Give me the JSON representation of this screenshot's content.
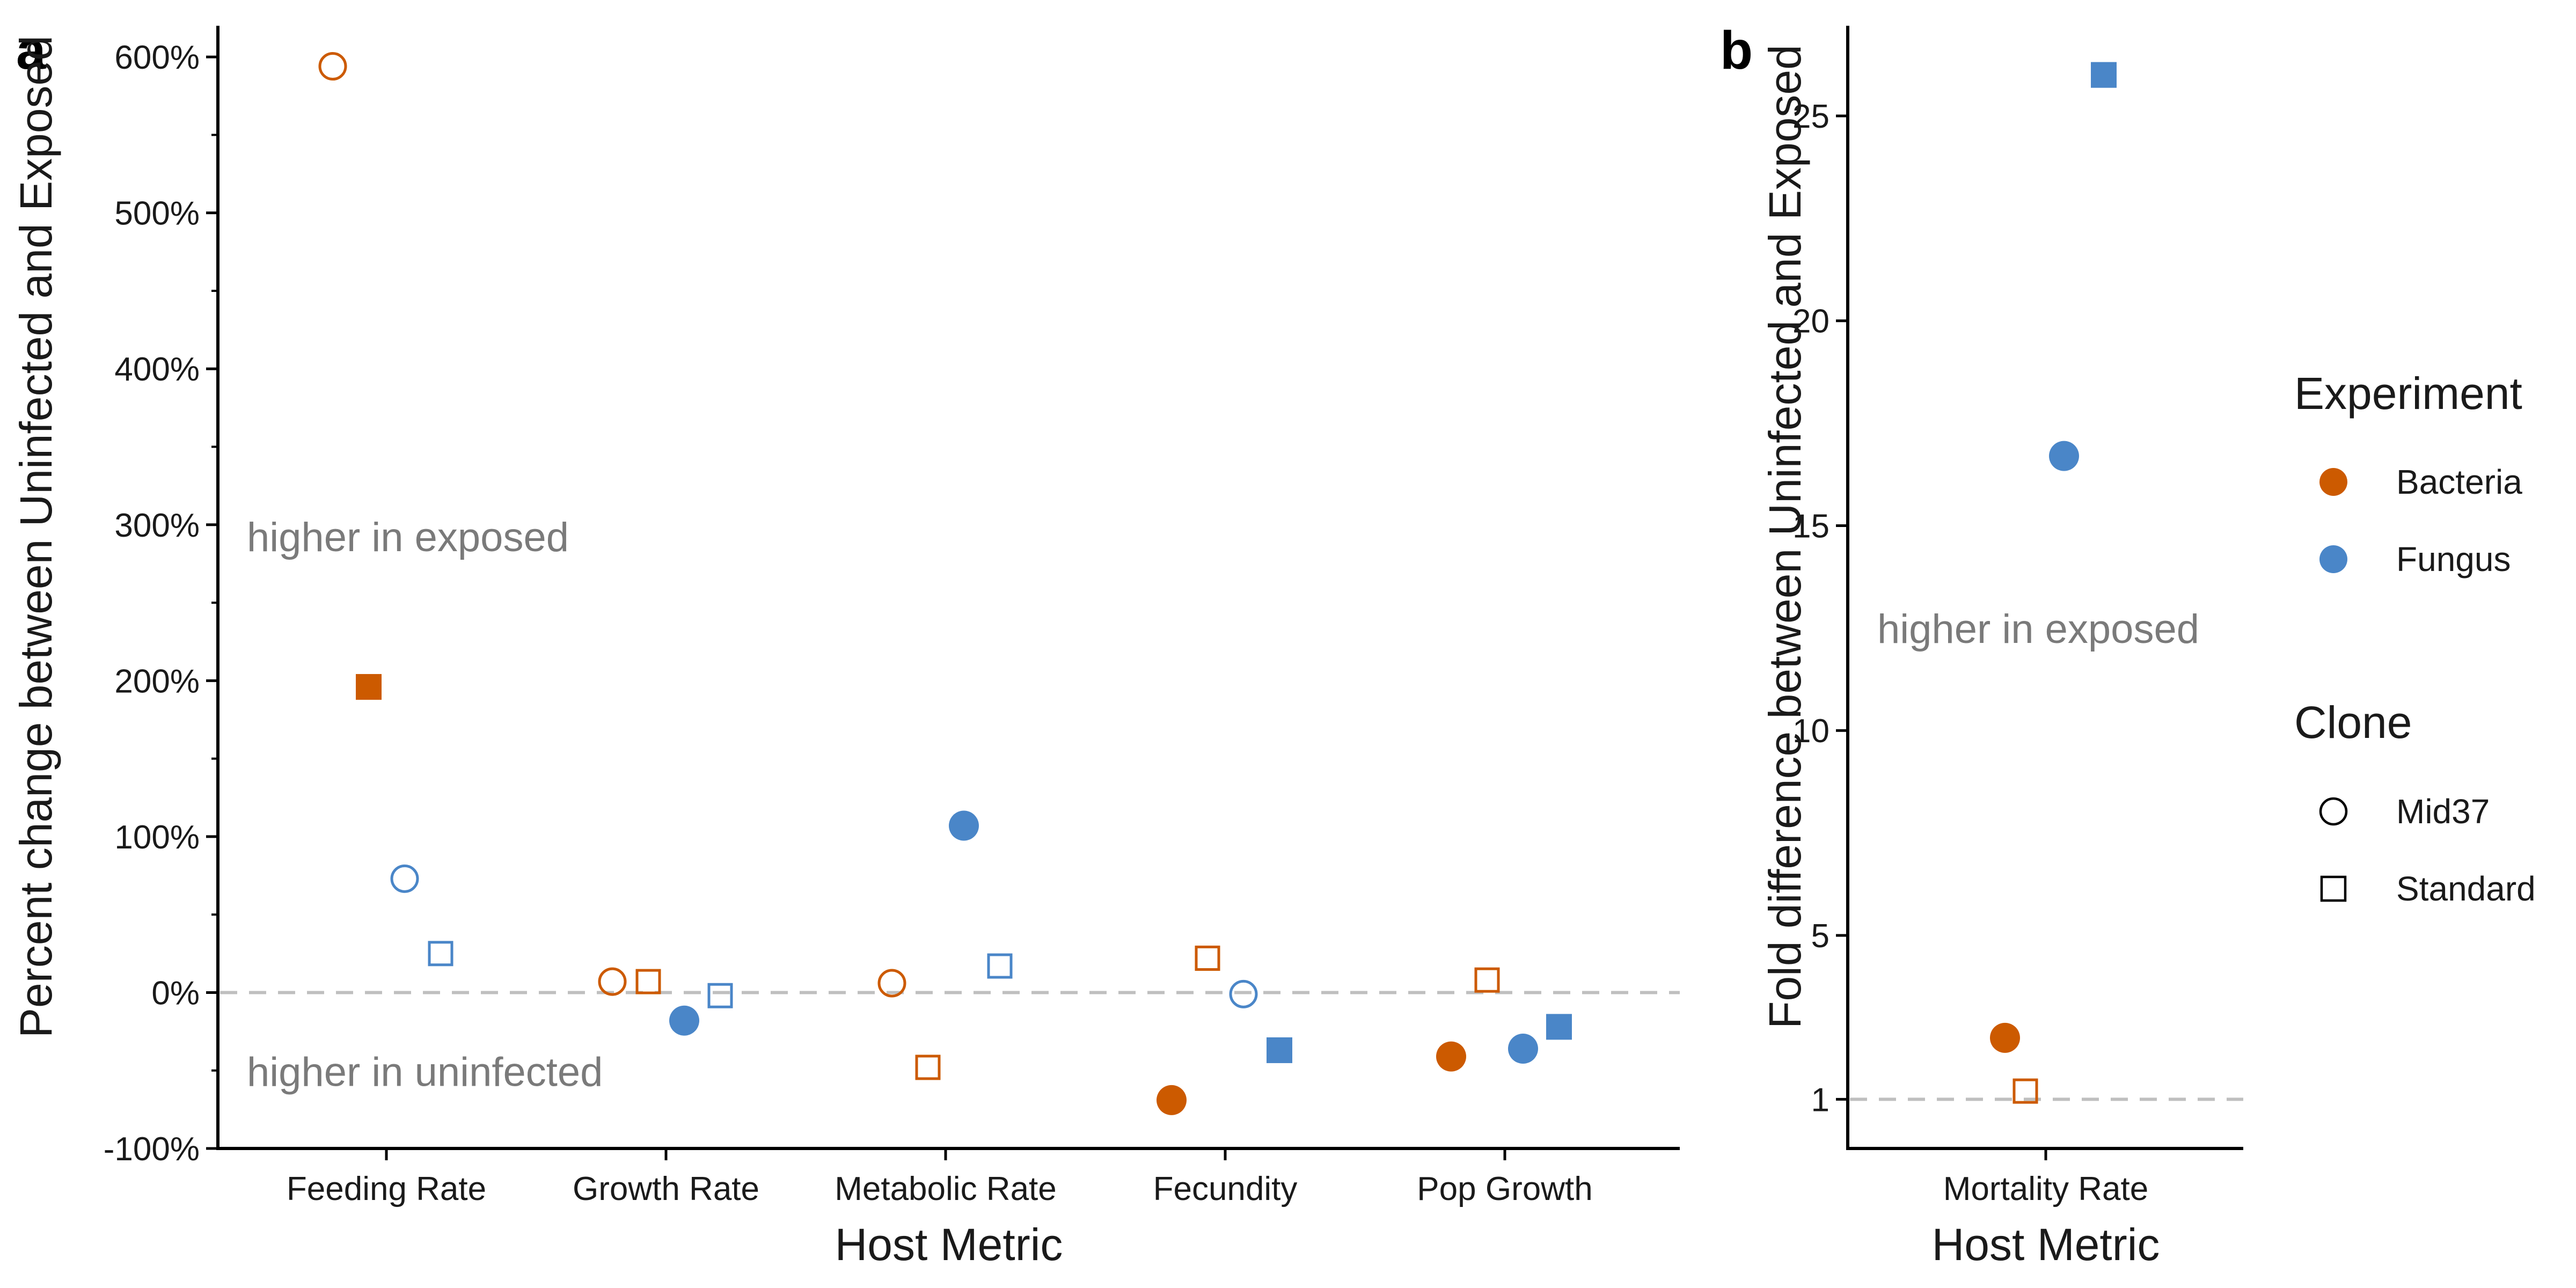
{
  "colors": {
    "Bacteria": "#cc5a00",
    "Fungus": "#4a86c8",
    "reference": "#bfbfbf",
    "annotation": "#7a7a7a"
  },
  "legend": {
    "experiment": {
      "title": "Experiment",
      "items": [
        {
          "label": "Bacteria",
          "color_key": "Bacteria"
        },
        {
          "label": "Fungus",
          "color_key": "Fungus"
        }
      ]
    },
    "clone": {
      "title": "Clone",
      "items": [
        {
          "label": "Mid37",
          "shape": "circle"
        },
        {
          "label": "Standard",
          "shape": "square"
        }
      ]
    }
  },
  "chart_data": [
    {
      "panel": "a",
      "type": "scatter",
      "xlabel": "Host Metric",
      "ylabel": "Percent change between Uninfected and Exposed",
      "categories": [
        "Feeding Rate",
        "Growth Rate",
        "Metabolic Rate",
        "Fecundity",
        "Pop Growth"
      ],
      "ylim": [
        -100,
        620
      ],
      "yticks": [
        -100,
        0,
        100,
        200,
        300,
        400,
        500,
        600
      ],
      "ytick_labels": [
        "-100%",
        "0%",
        "100%",
        "200%",
        "300%",
        "400%",
        "500%",
        "600%"
      ],
      "reference_line": 0,
      "annotations": [
        {
          "text": "higher in exposed",
          "y": 290
        },
        {
          "text": "higher in uninfected",
          "y": -53
        }
      ],
      "points": [
        {
          "category": "Feeding Rate",
          "experiment": "Bacteria",
          "clone": "Mid37",
          "infected": false,
          "y": 594
        },
        {
          "category": "Feeding Rate",
          "experiment": "Bacteria",
          "clone": "Standard",
          "infected": true,
          "y": 196
        },
        {
          "category": "Feeding Rate",
          "experiment": "Fungus",
          "clone": "Mid37",
          "infected": false,
          "y": 73
        },
        {
          "category": "Feeding Rate",
          "experiment": "Fungus",
          "clone": "Standard",
          "infected": false,
          "y": 25
        },
        {
          "category": "Growth Rate",
          "experiment": "Bacteria",
          "clone": "Mid37",
          "infected": false,
          "y": 7
        },
        {
          "category": "Growth Rate",
          "experiment": "Bacteria",
          "clone": "Standard",
          "infected": false,
          "y": 7
        },
        {
          "category": "Growth Rate",
          "experiment": "Fungus",
          "clone": "Mid37",
          "infected": true,
          "y": -18
        },
        {
          "category": "Growth Rate",
          "experiment": "Fungus",
          "clone": "Standard",
          "infected": false,
          "y": -2
        },
        {
          "category": "Metabolic Rate",
          "experiment": "Bacteria",
          "clone": "Mid37",
          "infected": false,
          "y": 6
        },
        {
          "category": "Metabolic Rate",
          "experiment": "Bacteria",
          "clone": "Standard",
          "infected": false,
          "y": -48
        },
        {
          "category": "Metabolic Rate",
          "experiment": "Fungus",
          "clone": "Mid37",
          "infected": true,
          "y": 107
        },
        {
          "category": "Metabolic Rate",
          "experiment": "Fungus",
          "clone": "Standard",
          "infected": false,
          "y": 17
        },
        {
          "category": "Fecundity",
          "experiment": "Bacteria",
          "clone": "Mid37",
          "infected": true,
          "y": -69
        },
        {
          "category": "Fecundity",
          "experiment": "Bacteria",
          "clone": "Standard",
          "infected": false,
          "y": 22
        },
        {
          "category": "Fecundity",
          "experiment": "Fungus",
          "clone": "Mid37",
          "infected": false,
          "y": -1
        },
        {
          "category": "Fecundity",
          "experiment": "Fungus",
          "clone": "Standard",
          "infected": true,
          "y": -37
        },
        {
          "category": "Pop Growth",
          "experiment": "Bacteria",
          "clone": "Mid37",
          "infected": true,
          "y": -41
        },
        {
          "category": "Pop Growth",
          "experiment": "Bacteria",
          "clone": "Standard",
          "infected": false,
          "y": 8
        },
        {
          "category": "Pop Growth",
          "experiment": "Fungus",
          "clone": "Mid37",
          "infected": true,
          "y": -36
        },
        {
          "category": "Pop Growth",
          "experiment": "Fungus",
          "clone": "Standard",
          "infected": true,
          "y": -22
        }
      ]
    },
    {
      "panel": "b",
      "type": "scatter",
      "xlabel": "Host Metric",
      "ylabel": "Fold difference between Uninfected and Exposed",
      "categories": [
        "Mortality Rate"
      ],
      "ylim": [
        -0.2,
        27.2
      ],
      "yticks": [
        1,
        5,
        10,
        15,
        20,
        25
      ],
      "ytick_labels": [
        "1",
        "5",
        "10",
        "15",
        "20",
        "25"
      ],
      "reference_line": 1,
      "annotations": [
        {
          "text": "higher in exposed",
          "y": 12.4
        }
      ],
      "points": [
        {
          "category": "Mortality Rate",
          "experiment": "Bacteria",
          "clone": "Mid37",
          "infected": true,
          "y": 2.5
        },
        {
          "category": "Mortality Rate",
          "experiment": "Bacteria",
          "clone": "Standard",
          "infected": false,
          "y": 1.2
        },
        {
          "category": "Mortality Rate",
          "experiment": "Fungus",
          "clone": "Mid37",
          "infected": true,
          "y": 16.7
        },
        {
          "category": "Mortality Rate",
          "experiment": "Fungus",
          "clone": "Standard",
          "infected": true,
          "y": 26.0
        }
      ]
    }
  ]
}
